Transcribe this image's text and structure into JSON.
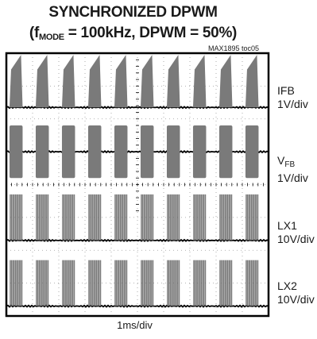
{
  "chart_data": {
    "type": "line",
    "title": "SYNCHRONIZED DPWM",
    "subtitle": {
      "pre": "(f",
      "sub": "MODE",
      "post": " = 100kHz, DPWM = 50%)"
    },
    "figure_tag": "MAX1895 toc05",
    "xlabel": "1ms/div",
    "x": {
      "divisions": 10,
      "ms_per_div": 1
    },
    "burst": {
      "period_ms": 1.0,
      "duty": 0.5,
      "first_start_ms": 0.12
    },
    "channels": [
      {
        "id": "IFB",
        "label": "IFB",
        "label_sub": "",
        "scale": "1V/div",
        "divs_occupied": 2,
        "kind": "ramp",
        "amplitude_div": 1.6
      },
      {
        "id": "VFB",
        "label": "V",
        "label_sub": "FB",
        "scale": "1V/div",
        "divs_occupied": 2,
        "kind": "bidirectional",
        "amplitude_div": 0.8
      },
      {
        "id": "LX1",
        "label": "LX1",
        "label_sub": "",
        "scale": "10V/div",
        "divs_occupied": 2,
        "kind": "switching",
        "amplitude_div": 1.4
      },
      {
        "id": "LX2",
        "label": "LX2",
        "label_sub": "",
        "scale": "10V/div",
        "divs_occupied": 2,
        "kind": "switching",
        "amplitude_div": 1.4
      }
    ],
    "grid": "dotted",
    "colors": {
      "trace": "#7a7a7a",
      "frame": "#000000",
      "grid": "#9a9a9a"
    }
  }
}
